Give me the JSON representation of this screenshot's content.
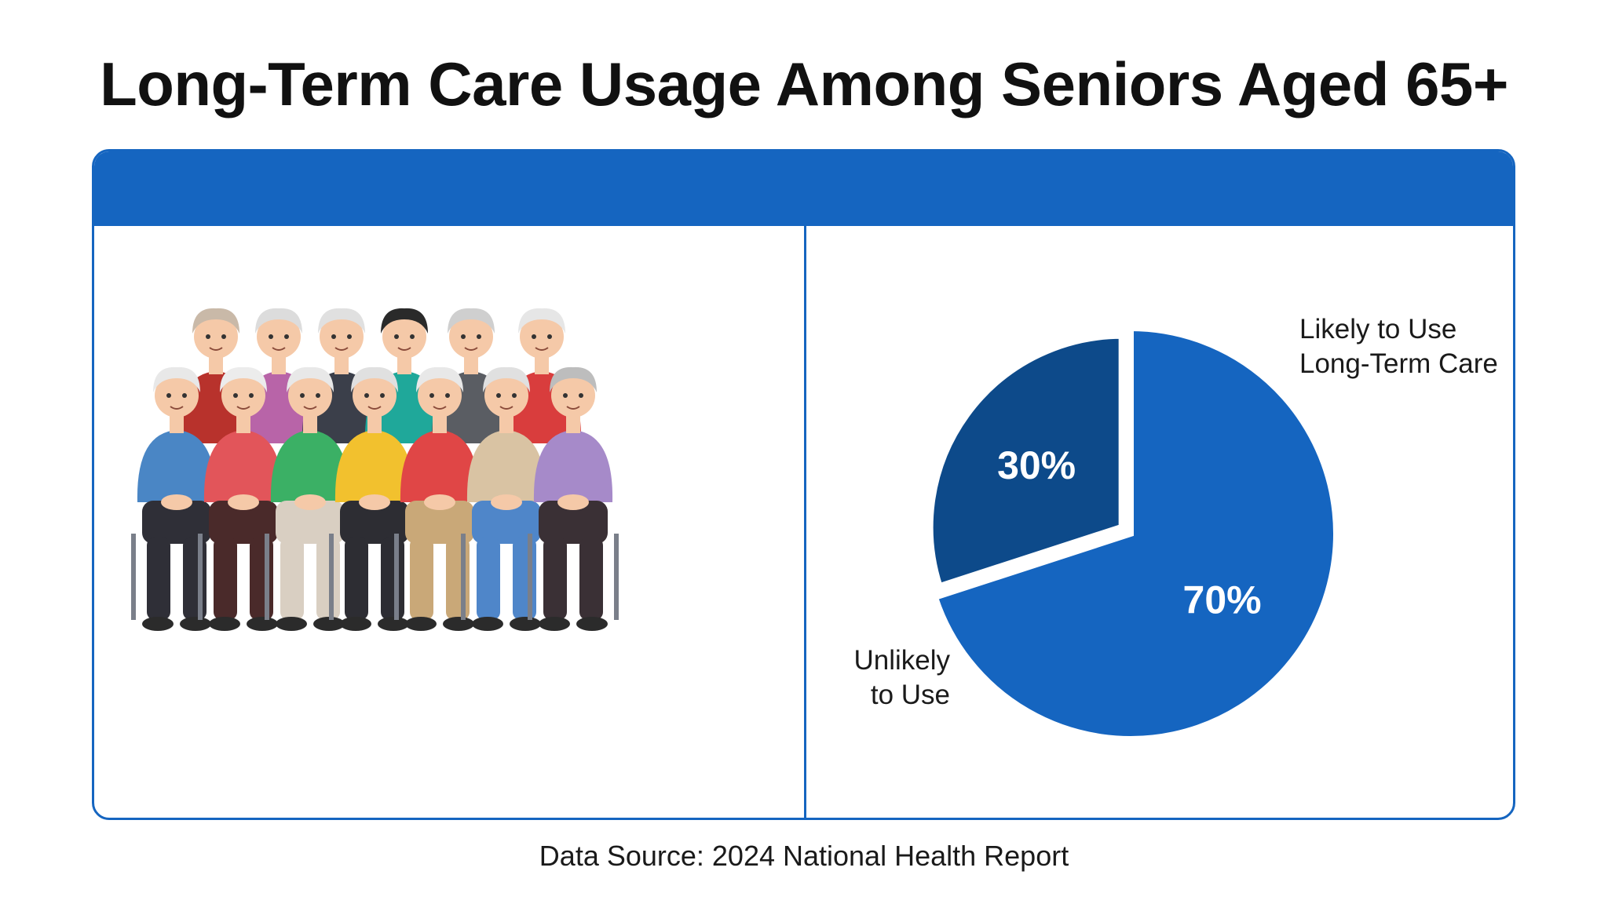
{
  "title": "Long-Term Care Usage Among Seniors Aged 65+",
  "source": "Data Source: 2024 National Health Report",
  "colors": {
    "brand_blue": "#1565c0",
    "dark_blue": "#0d4a8a",
    "white": "#ffffff"
  },
  "illustration": {
    "subject": "group-of-seniors",
    "icon": "seniors-illustration-icon"
  },
  "chart_data": {
    "type": "pie",
    "title": "",
    "slices": [
      {
        "label": "Likely to Use Long-Term Care",
        "label_lines": [
          "Likely to Use",
          "Long-Term Care"
        ],
        "value": 70,
        "display": "70%",
        "color": "#1565c0"
      },
      {
        "label": "Unlikely to Use",
        "label_lines": [
          "Unlikely",
          "to Use"
        ],
        "value": 30,
        "display": "30%",
        "color": "#0d4a8a",
        "exploded": true
      }
    ],
    "legend": "none"
  }
}
